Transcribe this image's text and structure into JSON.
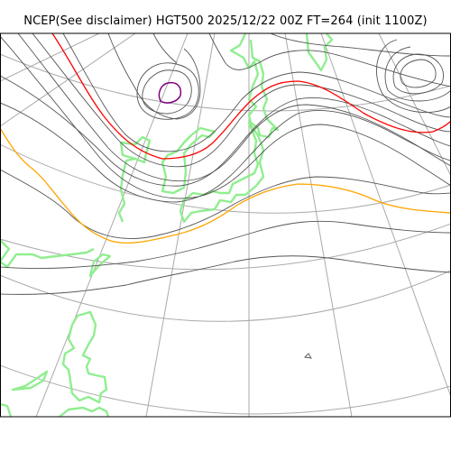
{
  "title": "NCEP(See disclaimer) HGT500 2025/12/22 00Z FT=264 (init 1100Z)",
  "colors": {
    "frame": "#000000",
    "grid": "#aaaaaa",
    "contour": "#555555",
    "contour_5400": "#ffa500",
    "contour_5100": "#ff0000",
    "contour_4800": "#800080",
    "coastline": "#90ee90"
  }
}
